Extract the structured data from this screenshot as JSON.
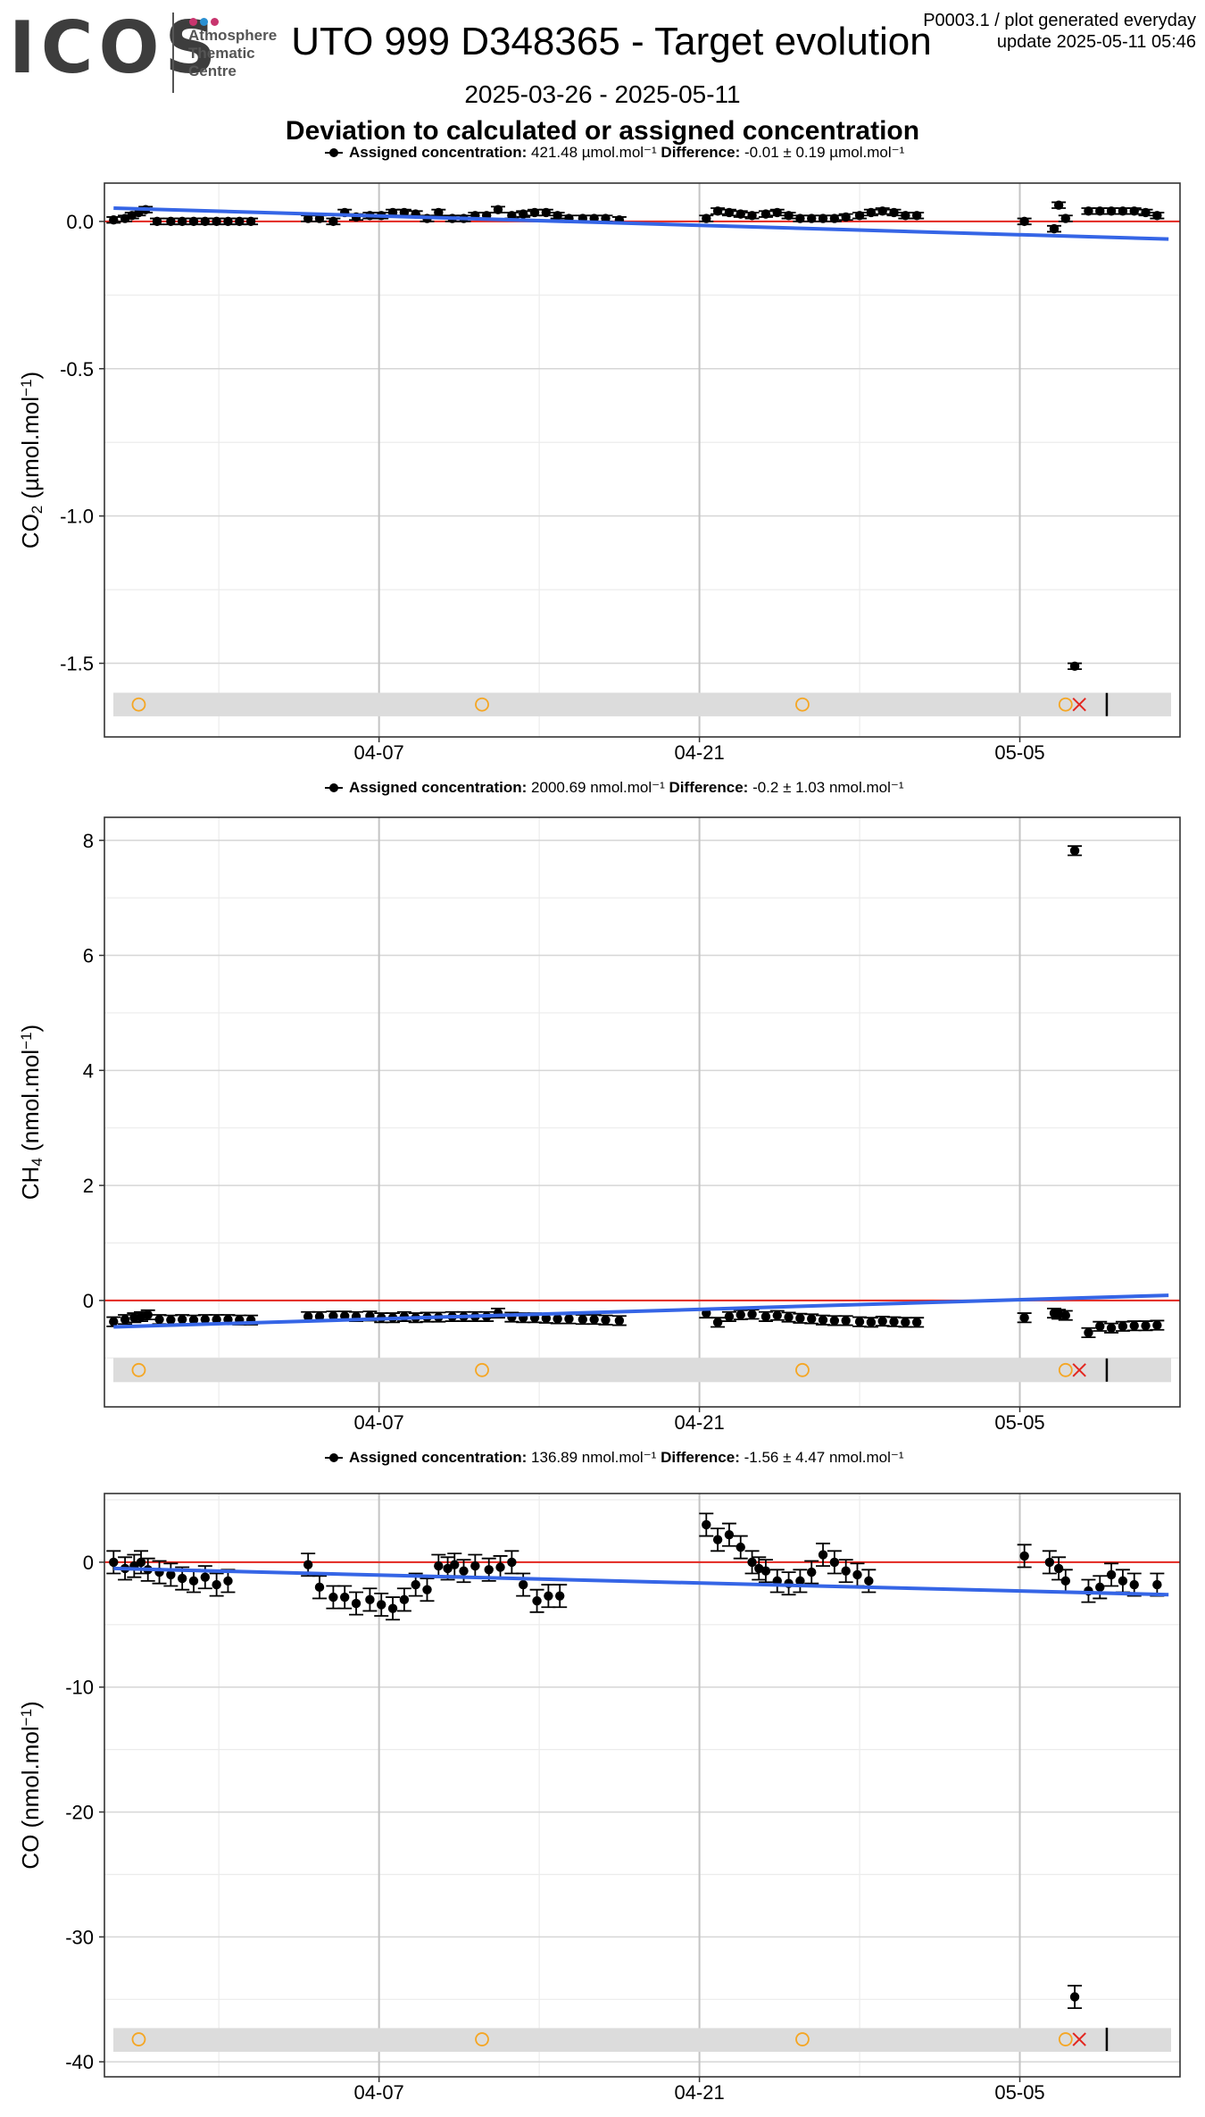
{
  "header": {
    "logo_text": "ICOS",
    "logo_sub": [
      "Atmosphere",
      "Thematic",
      "Centre"
    ],
    "logo_dot_colors": [
      "#c8356e",
      "#2a8fd1",
      "#c8356e"
    ],
    "title": "UTO 999 D348365 - Target evolution",
    "meta_line1": "P0003.1 / plot generated everyday",
    "meta_line2": "update  2025-05-11 05:46",
    "date_range": "2025-03-26 - 2025-05-11",
    "subtitle": "Deviation to calculated or assigned concentration"
  },
  "colors": {
    "zero_line": "#e3261f",
    "trend": "#3565e6",
    "points": "#000000",
    "flag_circle": "#f5a623",
    "flag_x": "#e3261f",
    "band": "#dcdcdc"
  },
  "chart_data": [
    {
      "type": "scatter",
      "gas": "CO2",
      "ylabel": "CO2 (µmol.mol-1)",
      "unit": "µmol.mol⁻¹",
      "legend": {
        "assigned_label": "Assigned concentration:",
        "assigned_value": "421.48 µmol.mol⁻¹",
        "difference_label": "Difference:",
        "difference_value": "-0.01 ± 0.19 µmol.mol⁻¹"
      },
      "ylim": [
        -1.75,
        0.13
      ],
      "yticks": [
        0.0,
        -0.5,
        -1.0,
        -1.5
      ],
      "ytick_labels": [
        "0.0",
        "-0.5",
        "-1.0",
        "-1.5"
      ],
      "xlim_day": [
        0,
        47
      ],
      "xticks_day": [
        12,
        26,
        40
      ],
      "xtick_labels": [
        "04-07",
        "04-21",
        "05-05"
      ],
      "points": [
        [
          0.4,
          0.005
        ],
        [
          0.9,
          0.01
        ],
        [
          1.2,
          0.02
        ],
        [
          1.5,
          0.03
        ],
        [
          1.8,
          0.04
        ],
        [
          2.3,
          0.0
        ],
        [
          2.9,
          0.0
        ],
        [
          3.4,
          0.0
        ],
        [
          3.9,
          0.0
        ],
        [
          4.4,
          0.0
        ],
        [
          4.9,
          0.0
        ],
        [
          5.4,
          0.0
        ],
        [
          5.9,
          0.0
        ],
        [
          6.4,
          0.0
        ],
        [
          8.9,
          0.01
        ],
        [
          9.4,
          0.01
        ],
        [
          10.0,
          0.0
        ],
        [
          10.5,
          0.03
        ],
        [
          11.0,
          0.015
        ],
        [
          11.6,
          0.02
        ],
        [
          12.1,
          0.02
        ],
        [
          12.6,
          0.03
        ],
        [
          13.1,
          0.03
        ],
        [
          13.6,
          0.025
        ],
        [
          14.1,
          0.01
        ],
        [
          14.6,
          0.03
        ],
        [
          15.2,
          0.01
        ],
        [
          15.7,
          0.01
        ],
        [
          16.2,
          0.02
        ],
        [
          16.7,
          0.02
        ],
        [
          17.2,
          0.04
        ],
        [
          17.8,
          0.02
        ],
        [
          18.3,
          0.025
        ],
        [
          18.8,
          0.03
        ],
        [
          19.3,
          0.03
        ],
        [
          19.8,
          0.02
        ],
        [
          20.3,
          0.01
        ],
        [
          20.9,
          0.01
        ],
        [
          21.4,
          0.01
        ],
        [
          21.9,
          0.01
        ],
        [
          22.5,
          0.005
        ],
        [
          26.3,
          0.01
        ],
        [
          26.8,
          0.035
        ],
        [
          27.3,
          0.03
        ],
        [
          27.8,
          0.025
        ],
        [
          28.3,
          0.02
        ],
        [
          28.9,
          0.025
        ],
        [
          29.4,
          0.03
        ],
        [
          29.9,
          0.02
        ],
        [
          30.4,
          0.01
        ],
        [
          30.9,
          0.01
        ],
        [
          31.4,
          0.01
        ],
        [
          31.9,
          0.01
        ],
        [
          32.4,
          0.015
        ],
        [
          33.0,
          0.02
        ],
        [
          33.5,
          0.03
        ],
        [
          34.0,
          0.035
        ],
        [
          34.5,
          0.03
        ],
        [
          35.0,
          0.02
        ],
        [
          35.5,
          0.02
        ],
        [
          40.2,
          0.0
        ],
        [
          41.5,
          -0.025
        ],
        [
          41.7,
          0.055
        ],
        [
          42.0,
          0.01
        ],
        [
          42.4,
          -1.51
        ],
        [
          43.0,
          0.035
        ],
        [
          43.5,
          0.035
        ],
        [
          44.0,
          0.035
        ],
        [
          44.5,
          0.035
        ],
        [
          45.0,
          0.035
        ],
        [
          45.5,
          0.03
        ],
        [
          46.0,
          0.02
        ]
      ],
      "err": 0.01,
      "trend": [
        [
          0.4,
          0.045
        ],
        [
          46.5,
          -0.06
        ]
      ],
      "band_y": [
        -1.6,
        -1.68
      ],
      "flag_y": -1.64,
      "flags_circle_day": [
        1.5,
        16.5,
        30.5,
        42.0
      ],
      "flag_x_day": 42.6,
      "flag_bar_day": 43.8
    },
    {
      "type": "scatter",
      "gas": "CH4",
      "ylabel": "CH4 (nmol.mol-1)",
      "unit": "nmol.mol⁻¹",
      "legend": {
        "assigned_label": "Assigned concentration:",
        "assigned_value": "2000.69 nmol.mol⁻¹",
        "difference_label": "Difference:",
        "difference_value": "-0.2 ± 1.03 nmol.mol⁻¹"
      },
      "ylim": [
        -1.85,
        8.4
      ],
      "yticks": [
        0,
        2,
        4,
        6,
        8
      ],
      "ytick_labels": [
        "0",
        "2",
        "4",
        "6",
        "8"
      ],
      "xlim_day": [
        0,
        47
      ],
      "xticks_day": [
        12,
        26,
        40
      ],
      "xtick_labels": [
        "04-07",
        "04-21",
        "05-05"
      ],
      "points": [
        [
          0.4,
          -0.37
        ],
        [
          0.9,
          -0.33
        ],
        [
          1.3,
          -0.3
        ],
        [
          1.6,
          -0.28
        ],
        [
          1.9,
          -0.25
        ],
        [
          2.4,
          -0.33
        ],
        [
          2.9,
          -0.34
        ],
        [
          3.4,
          -0.33
        ],
        [
          3.9,
          -0.34
        ],
        [
          4.4,
          -0.33
        ],
        [
          4.9,
          -0.33
        ],
        [
          5.4,
          -0.33
        ],
        [
          5.9,
          -0.34
        ],
        [
          6.4,
          -0.34
        ],
        [
          8.9,
          -0.28
        ],
        [
          9.4,
          -0.28
        ],
        [
          10.0,
          -0.27
        ],
        [
          10.5,
          -0.27
        ],
        [
          11.0,
          -0.28
        ],
        [
          11.6,
          -0.27
        ],
        [
          12.1,
          -0.3
        ],
        [
          12.6,
          -0.3
        ],
        [
          13.1,
          -0.28
        ],
        [
          13.6,
          -0.3
        ],
        [
          14.1,
          -0.29
        ],
        [
          14.6,
          -0.29
        ],
        [
          15.2,
          -0.28
        ],
        [
          15.7,
          -0.28
        ],
        [
          16.2,
          -0.28
        ],
        [
          16.7,
          -0.28
        ],
        [
          17.2,
          -0.22
        ],
        [
          17.8,
          -0.29
        ],
        [
          18.3,
          -0.3
        ],
        [
          18.8,
          -0.3
        ],
        [
          19.3,
          -0.31
        ],
        [
          19.8,
          -0.32
        ],
        [
          20.3,
          -0.32
        ],
        [
          20.9,
          -0.33
        ],
        [
          21.4,
          -0.33
        ],
        [
          21.9,
          -0.34
        ],
        [
          22.5,
          -0.35
        ],
        [
          26.3,
          -0.22
        ],
        [
          26.8,
          -0.38
        ],
        [
          27.3,
          -0.28
        ],
        [
          27.8,
          -0.25
        ],
        [
          28.3,
          -0.24
        ],
        [
          28.9,
          -0.28
        ],
        [
          29.4,
          -0.26
        ],
        [
          29.9,
          -0.29
        ],
        [
          30.4,
          -0.31
        ],
        [
          30.9,
          -0.32
        ],
        [
          31.4,
          -0.34
        ],
        [
          31.9,
          -0.35
        ],
        [
          32.4,
          -0.35
        ],
        [
          33.0,
          -0.37
        ],
        [
          33.5,
          -0.38
        ],
        [
          34.0,
          -0.36
        ],
        [
          34.5,
          -0.37
        ],
        [
          35.0,
          -0.38
        ],
        [
          35.5,
          -0.38
        ],
        [
          40.2,
          -0.3
        ],
        [
          41.5,
          -0.22
        ],
        [
          41.7,
          -0.24
        ],
        [
          42.0,
          -0.26
        ],
        [
          42.4,
          7.82
        ],
        [
          43.0,
          -0.56
        ],
        [
          43.5,
          -0.45
        ],
        [
          44.0,
          -0.48
        ],
        [
          44.5,
          -0.45
        ],
        [
          45.0,
          -0.44
        ],
        [
          45.5,
          -0.44
        ],
        [
          46.0,
          -0.43
        ]
      ],
      "err": 0.08,
      "trend": [
        [
          0.4,
          -0.46
        ],
        [
          46.5,
          0.09
        ]
      ],
      "band_y": [
        -1.0,
        -1.42
      ],
      "flag_y": -1.21,
      "flags_circle_day": [
        1.5,
        16.5,
        30.5,
        42.0
      ],
      "flag_x_day": 42.6,
      "flag_bar_day": 43.8
    },
    {
      "type": "scatter",
      "gas": "CO",
      "ylabel": "CO (nmol.mol-1)",
      "unit": "nmol.mol⁻¹",
      "legend": {
        "assigned_label": "Assigned concentration:",
        "assigned_value": "136.89 nmol.mol⁻¹",
        "difference_label": "Difference:",
        "difference_value": "-1.56 ± 4.47 nmol.mol⁻¹"
      },
      "ylim": [
        -41.2,
        5.5
      ],
      "yticks": [
        0,
        -10,
        -20,
        -30,
        -40
      ],
      "ytick_labels": [
        "0",
        "-10",
        "-20",
        "-30",
        "-40"
      ],
      "xlim_day": [
        0,
        47
      ],
      "xticks_day": [
        12,
        26,
        40
      ],
      "xtick_labels": [
        "04-07",
        "04-21",
        "05-05"
      ],
      "points": [
        [
          0.4,
          0.0
        ],
        [
          0.9,
          -0.5
        ],
        [
          1.3,
          -0.3
        ],
        [
          1.6,
          0.0
        ],
        [
          1.9,
          -0.6
        ],
        [
          2.4,
          -0.8
        ],
        [
          2.9,
          -1.0
        ],
        [
          3.4,
          -1.3
        ],
        [
          3.9,
          -1.5
        ],
        [
          4.4,
          -1.2
        ],
        [
          4.9,
          -1.8
        ],
        [
          5.4,
          -1.5
        ],
        [
          8.9,
          -0.2
        ],
        [
          9.4,
          -2.0
        ],
        [
          10.0,
          -2.8
        ],
        [
          10.5,
          -2.8
        ],
        [
          11.0,
          -3.3
        ],
        [
          11.6,
          -3.0
        ],
        [
          12.1,
          -3.4
        ],
        [
          12.6,
          -3.7
        ],
        [
          13.1,
          -3.0
        ],
        [
          13.6,
          -1.8
        ],
        [
          14.1,
          -2.2
        ],
        [
          14.6,
          -0.3
        ],
        [
          15.0,
          -0.5
        ],
        [
          15.3,
          -0.2
        ],
        [
          15.7,
          -0.7
        ],
        [
          16.2,
          -0.3
        ],
        [
          16.8,
          -0.6
        ],
        [
          17.3,
          -0.4
        ],
        [
          17.8,
          0.0
        ],
        [
          18.3,
          -1.8
        ],
        [
          18.9,
          -3.1
        ],
        [
          19.4,
          -2.7
        ],
        [
          19.9,
          -2.7
        ],
        [
          26.3,
          3.0
        ],
        [
          26.8,
          1.8
        ],
        [
          27.3,
          2.2
        ],
        [
          27.8,
          1.2
        ],
        [
          28.3,
          0.0
        ],
        [
          28.6,
          -0.5
        ],
        [
          28.9,
          -0.7
        ],
        [
          29.4,
          -1.5
        ],
        [
          29.9,
          -1.7
        ],
        [
          30.4,
          -1.5
        ],
        [
          30.9,
          -0.8
        ],
        [
          31.4,
          0.6
        ],
        [
          31.9,
          0.0
        ],
        [
          32.4,
          -0.7
        ],
        [
          32.9,
          -1.0
        ],
        [
          33.4,
          -1.5
        ],
        [
          40.2,
          0.5
        ],
        [
          41.3,
          0.0
        ],
        [
          41.7,
          -0.5
        ],
        [
          42.0,
          -1.5
        ],
        [
          42.4,
          -34.8
        ],
        [
          43.0,
          -2.3
        ],
        [
          43.5,
          -2.0
        ],
        [
          44.0,
          -1.0
        ],
        [
          44.5,
          -1.5
        ],
        [
          45.0,
          -1.8
        ],
        [
          46.0,
          -1.8
        ]
      ],
      "err": 0.9,
      "trend": [
        [
          0.4,
          -0.5
        ],
        [
          46.5,
          -2.6
        ]
      ],
      "band_y": [
        -37.3,
        -39.2
      ],
      "flag_y": -38.2,
      "flags_circle_day": [
        1.5,
        16.5,
        30.5,
        42.0
      ],
      "flag_x_day": 42.6,
      "flag_bar_day": 43.8
    }
  ]
}
